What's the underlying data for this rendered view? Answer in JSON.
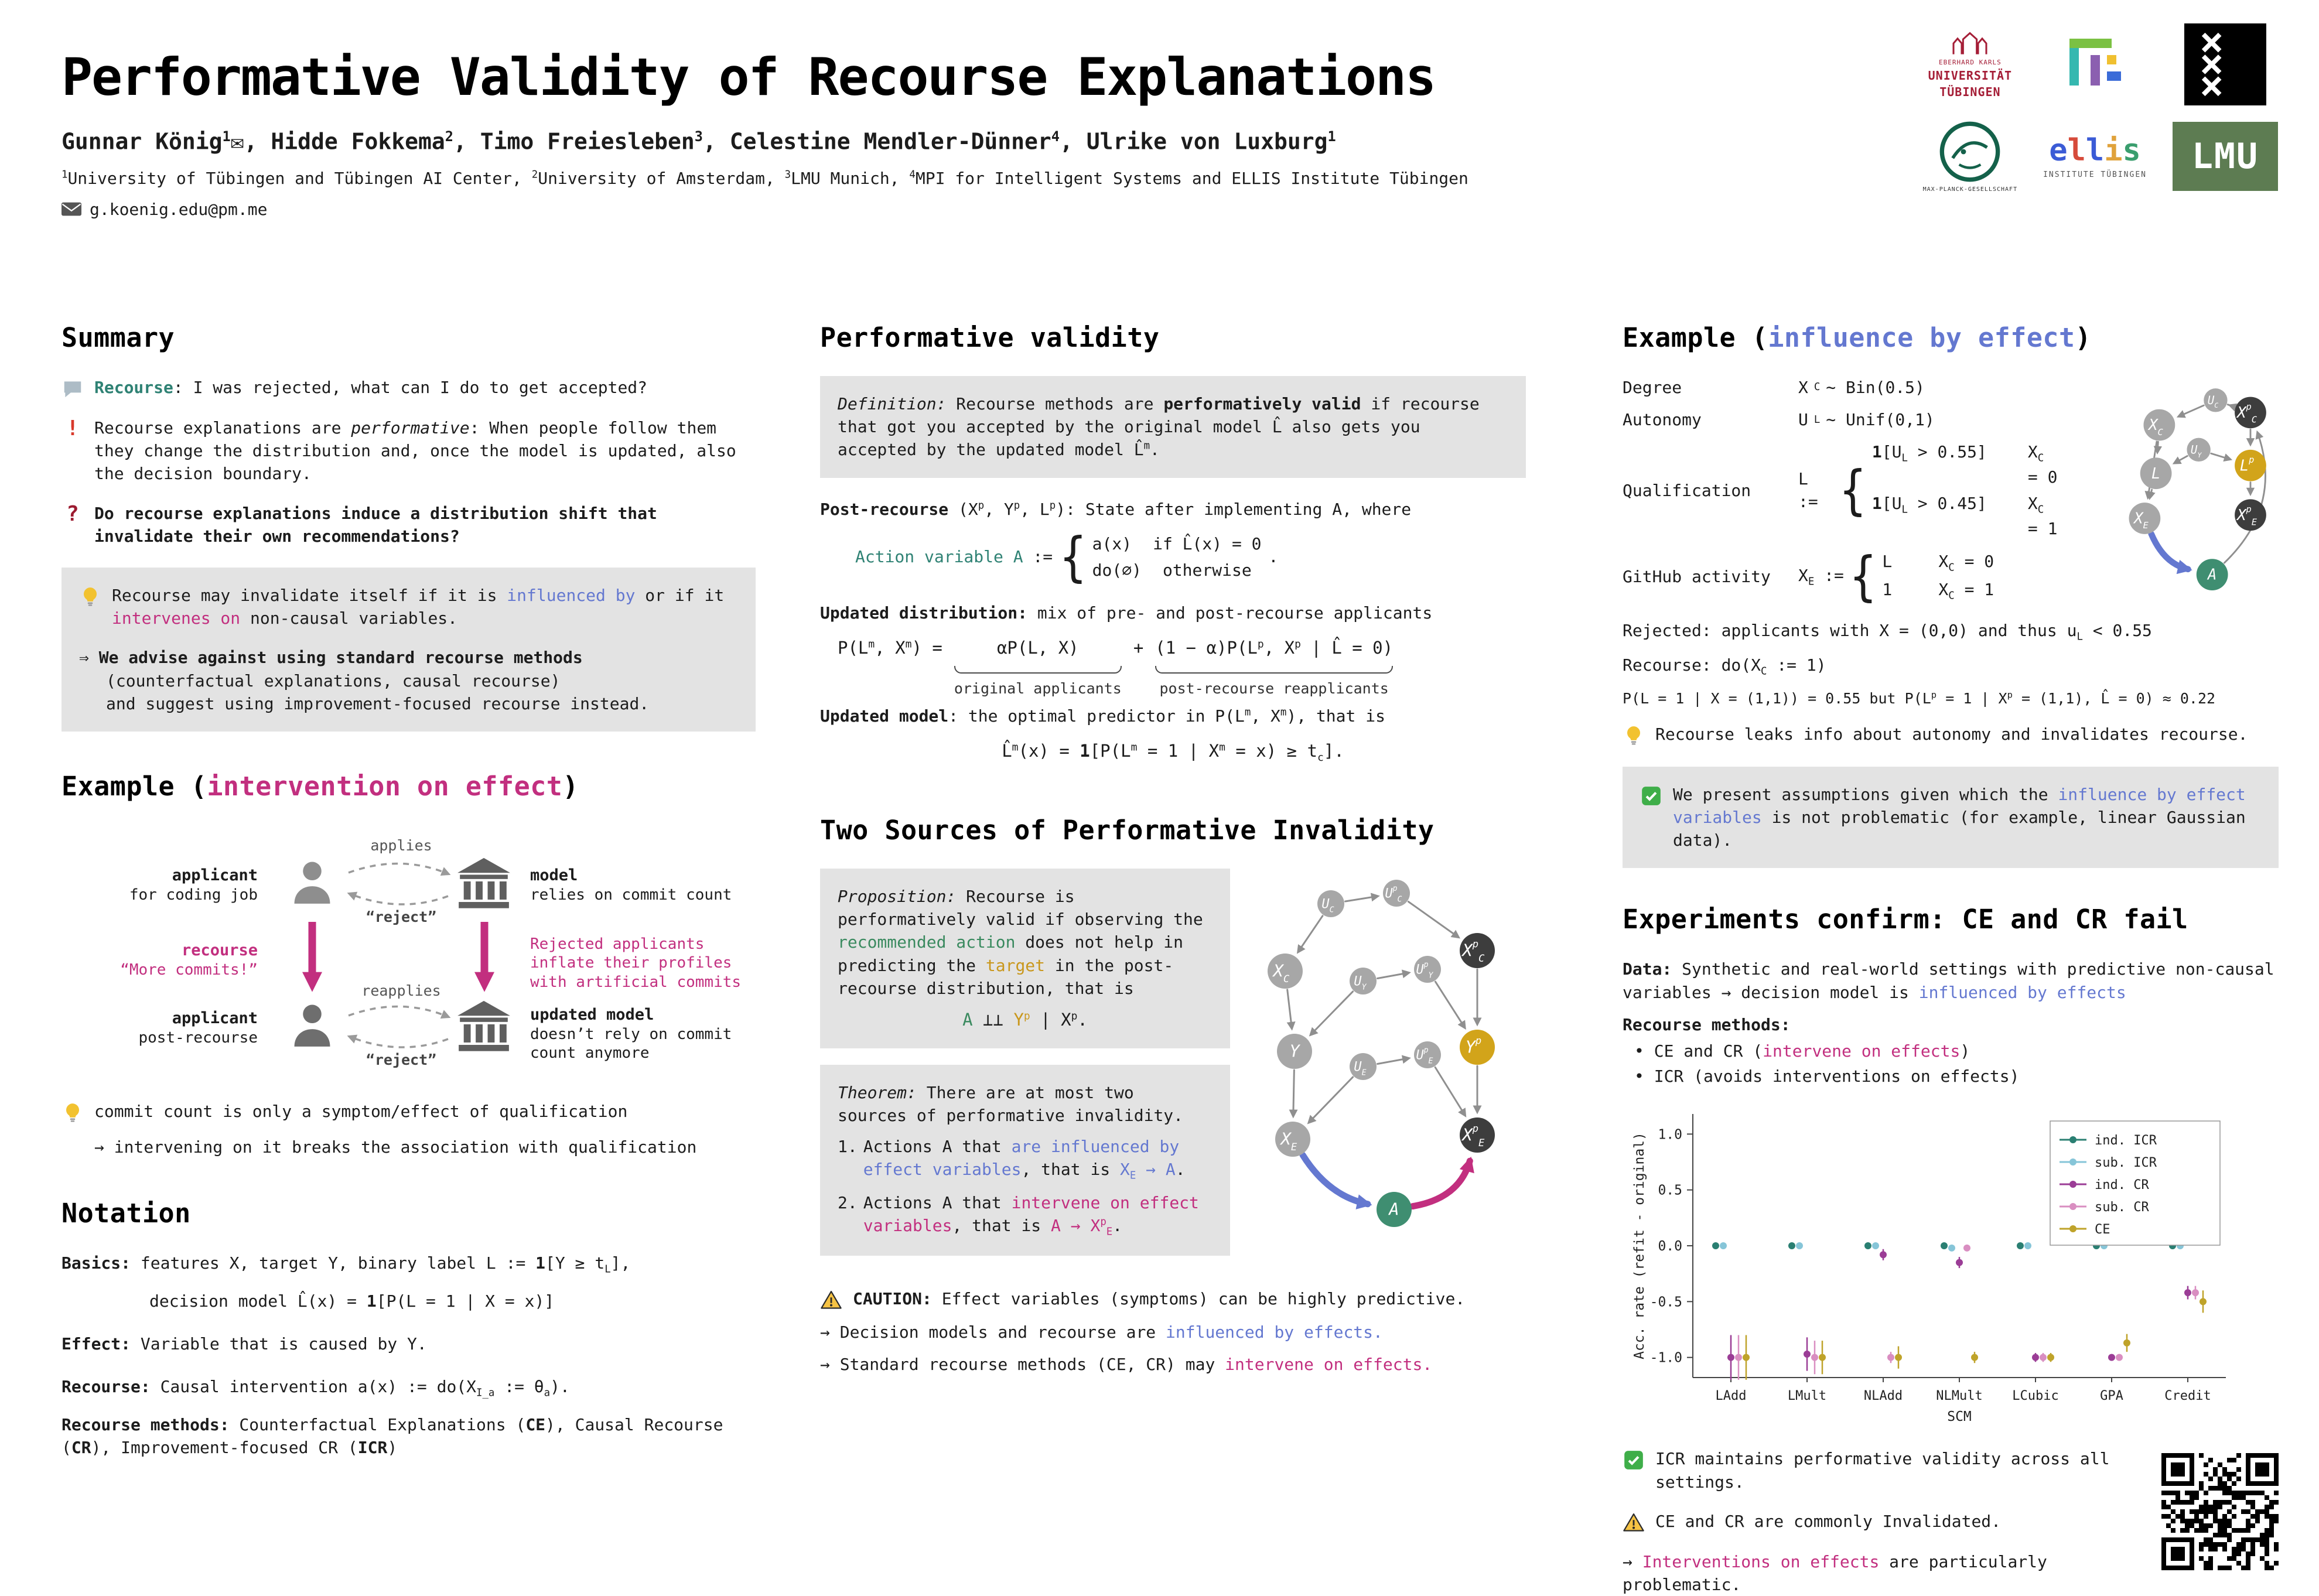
{
  "header": {
    "title": "Performative Validity of Recourse Explanations",
    "authors": "Gunnar König^1^✉, Hidde Fokkema^2^, Timo Freiesleben^3^, Celestine Mendler-Dünner^4^, Ulrike von Luxburg^1^",
    "affiliations": "^1^University of Tübingen and Tübingen AI Center, ^2^University of Amsterdam, ^3^LMU Munich, ^4^MPI for Intelligent Systems and ELLIS Institute Tübingen",
    "email": "g.koenig.edu@pm.me",
    "logos": {
      "uni_tuebingen": [
        "EBERHARD KARLS",
        "UNIVERSITÄT",
        "TÜBINGEN"
      ],
      "mpg": "MAX-PLANCK-GESELLSCHAFT",
      "ellis_letters": [
        {
          "ch": "e",
          "c": "#3b5bd6"
        },
        {
          "ch": "l",
          "c": "#d64b3b"
        },
        {
          "ch": "l",
          "c": "#3b5bd6"
        },
        {
          "ch": "i",
          "c": "#e0a23b"
        },
        {
          "ch": "s",
          "c": "#3a9e6e"
        }
      ],
      "ellis_caption": "INSTITUTE TÜBINGEN",
      "lmu": "LMU"
    }
  },
  "summary": {
    "heading": "Summary",
    "items": [
      {
        "spans": [
          {
            "t": "Recourse",
            "c": "teal bold"
          },
          {
            "t": ": I was rejected, what can I do to get accepted?"
          }
        ]
      },
      {
        "spans": [
          {
            "t": "Recourse explanations are "
          },
          {
            "t": "performative",
            "c": "italic"
          },
          {
            "t": ": When people follow them they change the distribution and, once the model is updated, also the decision boundary."
          }
        ]
      },
      {
        "spans": [
          {
            "t": "Do recourse explanations induce a distribution shift that invalidate their own recommendations?",
            "c": "bold"
          }
        ]
      }
    ],
    "box": {
      "bulb_spans": [
        {
          "t": "Recourse may invalidate itself if it is "
        },
        {
          "t": "influenced by",
          "c": "blue"
        },
        {
          "t": " or if it "
        },
        {
          "t": "intervenes on",
          "c": "magenta"
        },
        {
          "t": " non-causal variables."
        }
      ],
      "advice_spans": [
        {
          "t": "⇒ "
        },
        {
          "t": "We advise against using standard recourse methods",
          "c": "bold"
        },
        {
          "t": "\n(counterfactual explanations, causal recourse)\nand suggest using improvement-focused recourse instead."
        }
      ]
    }
  },
  "example1": {
    "heading_spans": [
      {
        "t": "Example ("
      },
      {
        "t": "intervention on effect",
        "c": "magenta"
      },
      {
        "t": ")"
      }
    ],
    "diagram": {
      "applicant_top_title": "applicant",
      "applicant_top_sub": "for coding job",
      "applies_label": "applies",
      "reject_top": "“reject”",
      "model_title": "model",
      "model_sub": "relies on commit count",
      "recourse_title": "recourse",
      "recourse_quote": "“More commits!”",
      "inflate_text": "Rejected applicants\ninflate their profiles\nwith artificial commits",
      "applicant_bottom_title": "applicant",
      "applicant_bottom_sub": "post-recourse",
      "reapplies_label": "reapplies",
      "reject_bottom": "“reject”",
      "updated_model_title": "updated model",
      "updated_model_sub": "doesn’t rely on commit\ncount anymore"
    },
    "notes": {
      "bulb_spans": [
        {
          "t": "commit count is only a symptom/effect of qualification"
        }
      ],
      "arrow_spans": [
        {
          "t": "→ intervening on it breaks the association with qualification"
        }
      ]
    }
  },
  "notation": {
    "heading": "Notation",
    "basics1_spans": [
      {
        "t": "Basics:",
        "c": "bold"
      },
      {
        "t": " features X, target Y, binary label L := **1**[Y ≥ t~L~],"
      }
    ],
    "basics2_spans": [
      {
        "t": "decision model L̂(x) = **1**[P(L = 1 | X = x)]"
      }
    ],
    "effect_spans": [
      {
        "t": "Effect:",
        "c": "bold"
      },
      {
        "t": " Variable that is caused by Y."
      }
    ],
    "recourse_spans": [
      {
        "t": "Recourse:",
        "c": "bold"
      },
      {
        "t": " Causal intervention a(x) := do(X~I_a~ := θ~a~)."
      }
    ],
    "methods_spans": [
      {
        "t": "Recourse methods:",
        "c": "bold"
      },
      {
        "t": " Counterfactual Explanations (**CE**), Causal Recourse (**CR**), Improvement-focused CR (**ICR**)"
      }
    ]
  },
  "pv": {
    "heading": "Performative validity",
    "definition_spans": [
      {
        "t": "Definition:",
        "c": "italic"
      },
      {
        "t": " Recourse methods are "
      },
      {
        "t": "performatively valid",
        "c": "bold"
      },
      {
        "t": " if recourse that got you accepted by the original model L̂ also gets you accepted by the updated model L̂^m^."
      }
    ],
    "post_spans": [
      {
        "t": "Post-recourse",
        "c": "bold"
      },
      {
        "t": " (X^p^, Y^p^, L^p^): State after implementing A, where"
      }
    ],
    "action": {
      "lhs_spans": [
        {
          "t": "Action variable A",
          "c": "teal"
        },
        {
          "t": " := "
        }
      ],
      "cases": [
        {
          "expr": "a(x)",
          "cond": "if L̂(x) = 0"
        },
        {
          "expr": "do(∅)",
          "cond": "otherwise"
        }
      ],
      "suffix": "."
    },
    "dist_spans": [
      {
        "t": "Updated distribution:",
        "c": "bold"
      },
      {
        "t": " mix of pre- and post-recourse applicants"
      }
    ],
    "eq": {
      "lhs": "P(L^m^, X^m^) =",
      "term1": "αP(L, X)",
      "label1": "original applicants",
      "plus": "+",
      "term2": "(1 − α)P(L^p^, X^p^ | L̂ = 0)",
      "label2": "post-recourse reapplicants"
    },
    "model_spans": [
      {
        "t": "Updated model",
        "c": "bold"
      },
      {
        "t": ": the optimal predictor in P(L^m^, X^m^), that is"
      }
    ],
    "model_eq": "L̂^m^(x) = **1**[P(L^m^ = 1 | X^m^ = x) ≥ t~c~]."
  },
  "ts": {
    "heading": "Two Sources of Performative Invalidity",
    "proposition_spans": [
      {
        "t": "Proposition:",
        "c": "italic"
      },
      {
        "t": " Recourse is performatively valid if observing the "
      },
      {
        "t": "recommended action",
        "c": "green"
      },
      {
        "t": " does not help in predicting the "
      },
      {
        "t": "target",
        "c": "gold"
      },
      {
        "t": " in the post-recourse distribution, that is"
      }
    ],
    "prop_eq_spans": [
      {
        "t": "A",
        "c": "green"
      },
      {
        "t": " ⊥⊥ "
      },
      {
        "t": "Y^p^",
        "c": "gold"
      },
      {
        "t": " | X^p^."
      }
    ],
    "theorem_spans": [
      {
        "t": "Theorem:",
        "c": "italic"
      },
      {
        "t": " There are at most two sources of performative invalidity."
      }
    ],
    "list": [
      {
        "num": "1.",
        "spans": [
          {
            "t": "Actions A that "
          },
          {
            "t": "are influenced by effect variables",
            "c": "blue"
          },
          {
            "t": ", that is "
          },
          {
            "t": "X~E~ → A",
            "c": "blue"
          },
          {
            "t": "."
          }
        ]
      },
      {
        "num": "2.",
        "spans": [
          {
            "t": "Actions A that "
          },
          {
            "t": "intervene on effect variables",
            "c": "magenta"
          },
          {
            "t": ", that is "
          },
          {
            "t": "A → X^p^~E~",
            "c": "magenta"
          },
          {
            "t": "."
          }
        ]
      }
    ],
    "caution_spans": [
      {
        "t": "CAUTION:",
        "c": "bold"
      },
      {
        "t": " Effect variables (symptoms) can be highly predictive."
      }
    ],
    "arrow1_spans": [
      {
        "t": "→ Decision models and recourse are "
      },
      {
        "t": "influenced by effects.",
        "c": "blue"
      }
    ],
    "arrow2_spans": [
      {
        "t": "→ Standard recourse methods (CE, CR) may "
      },
      {
        "t": "intervene on effects.",
        "c": "magenta"
      }
    ]
  },
  "example2": {
    "heading_spans": [
      {
        "t": "Example ("
      },
      {
        "t": "influence by effect",
        "c": "blue"
      },
      {
        "t": ")"
      }
    ],
    "rows": [
      {
        "label": "Degree",
        "formula": "X~C~ ∼ Bin(0.5)"
      },
      {
        "label": "Autonomy",
        "formula": "U~L~ ∼ Unif(0,1)"
      },
      {
        "label": "Qualification",
        "lhs": "L := ",
        "cases": [
          {
            "expr": "**1**[U~L~ > 0.55]",
            "cond": "X~C~ = 0"
          },
          {
            "expr": "**1**[U~L~ > 0.45]",
            "cond": "X~C~ = 1"
          }
        ]
      },
      {
        "label": "GitHub activity",
        "lhs": "X~E~ := ",
        "cases": [
          {
            "expr": "L",
            "cond": "X~C~ = 0"
          },
          {
            "expr": "1",
            "cond": "X~C~ = 1"
          }
        ]
      }
    ],
    "rejected": "Rejected: applicants with X = (0,0) and thus u~L~ < 0.55",
    "recourse": "Recourse: do(X~C~ := 1)",
    "pline": "P(L = 1 | X = (1,1)) = 0.55 but P(L^p^ = 1 | X^p^ = (1,1), L̂ = 0) ≈ 0.22",
    "bulb_spans": [
      {
        "t": "Recourse leaks info about autonomy and invalidates recourse."
      }
    ],
    "box_spans": [
      {
        "t": "We present assumptions given which the "
      },
      {
        "t": "influence by effect variables",
        "c": "blue"
      },
      {
        "t": " is not problematic (for example, linear Gaussian data)."
      }
    ]
  },
  "exp": {
    "heading": "Experiments confirm: CE and CR fail",
    "data_spans": [
      {
        "t": "Data:",
        "c": "bold"
      },
      {
        "t": " Synthetic and real-world settings with predictive non-causal variables → decision model is "
      },
      {
        "t": "influenced by effects",
        "c": "blue"
      }
    ],
    "methods_spans": [
      {
        "t": "Recourse methods:",
        "c": "bold"
      }
    ],
    "bullets": [
      [
        {
          "t": "• CE and CR ("
        },
        {
          "t": "intervene on effects",
          "c": "magenta"
        },
        {
          "t": ")"
        }
      ],
      [
        {
          "t": "• ICR (avoids interventions on effects)"
        }
      ]
    ],
    "conclusions": [
      {
        "spans": [
          {
            "t": "ICR maintains performative validity across all settings."
          }
        ]
      },
      {
        "spans": [
          {
            "t": "CE and CR are commonly Invalidated."
          }
        ]
      },
      {
        "spans": [
          {
            "t": "→ "
          },
          {
            "t": "Interventions on effects",
            "c": "magenta"
          },
          {
            "t": " are particularly problematic."
          }
        ]
      }
    ]
  },
  "chart_data": {
    "type": "scatter",
    "title": "",
    "xlabel": "SCM",
    "ylabel": "Acc. rate (refit - original)",
    "ylim": [
      -1.18,
      1.18
    ],
    "yticks": [
      1.0,
      0.5,
      0.0,
      -0.5,
      -1.0
    ],
    "categories": [
      "LAdd",
      "LMult",
      "NLAdd",
      "NLMult",
      "LCubic",
      "GPA",
      "Credit"
    ],
    "legend_position": "right",
    "series": [
      {
        "name": "ind. ICR",
        "color": "#2a7f72",
        "values": [
          0,
          0,
          0,
          0,
          0,
          0,
          0
        ],
        "err": [
          0.02,
          0.02,
          0.02,
          0.02,
          0.02,
          0.02,
          0.02
        ]
      },
      {
        "name": "sub. ICR",
        "color": "#86c5d8",
        "values": [
          0,
          0,
          0,
          -0.02,
          0,
          0,
          0
        ],
        "err": [
          0.02,
          0.02,
          0.02,
          0.02,
          0.02,
          0.02,
          0.02
        ]
      },
      {
        "name": "ind. CR",
        "color": "#9b3d96",
        "values": [
          -1,
          -0.97,
          -0.08,
          -0.15,
          -1,
          -1,
          -0.42
        ],
        "err": [
          0.2,
          0.15,
          0.05,
          0.05,
          0.04,
          0.03,
          0.06
        ]
      },
      {
        "name": "sub. CR",
        "color": "#d98ec1",
        "values": [
          -1,
          -1,
          -1,
          -0.02,
          -1,
          -1,
          -0.42
        ],
        "err": [
          0.2,
          0.15,
          0.05,
          0.02,
          0.04,
          0.03,
          0.06
        ]
      },
      {
        "name": "CE",
        "color": "#bfa32a",
        "values": [
          -1,
          -1,
          -1,
          -1,
          -1,
          -0.87,
          -0.5
        ],
        "err": [
          0.2,
          0.15,
          0.1,
          0.05,
          0.04,
          0.08,
          0.1
        ]
      }
    ]
  },
  "graphs": {
    "g1": {
      "nodes": [
        {
          "id": "UC",
          "main": "U",
          "sub": "C",
          "color": "gray",
          "small": true
        },
        {
          "id": "UpC",
          "main": "U",
          "sup": "p",
          "sub": "C",
          "color": "gray",
          "small": true
        },
        {
          "id": "XC",
          "main": "X",
          "sub": "C",
          "color": "gray"
        },
        {
          "id": "XpC",
          "main": "X",
          "sup": "p",
          "sub": "C",
          "color": "dark"
        },
        {
          "id": "UY",
          "main": "U",
          "sub": "Y",
          "color": "gray",
          "small": true
        },
        {
          "id": "UpY",
          "main": "U",
          "sup": "p",
          "sub": "Y",
          "color": "gray",
          "small": true
        },
        {
          "id": "Y",
          "main": "Y",
          "color": "gray"
        },
        {
          "id": "Yp",
          "main": "Y",
          "sup": "p",
          "color": "gold"
        },
        {
          "id": "UE",
          "main": "U",
          "sub": "E",
          "color": "gray",
          "small": true
        },
        {
          "id": "UpE",
          "main": "U",
          "sup": "p",
          "sub": "E",
          "color": "gray",
          "small": true
        },
        {
          "id": "XE",
          "main": "X",
          "sub": "E",
          "color": "gray"
        },
        {
          "id": "XpE",
          "main": "X",
          "sup": "p",
          "sub": "E",
          "color": "dark"
        },
        {
          "id": "A",
          "main": "A",
          "color": "green"
        }
      ],
      "edges": [
        {
          "from": "UC",
          "to": "XC"
        },
        {
          "from": "UC",
          "to": "UpC"
        },
        {
          "from": "UpC",
          "to": "XpC"
        },
        {
          "from": "XC",
          "to": "Y"
        },
        {
          "from": "UY",
          "to": "Y"
        },
        {
          "from": "UY",
          "to": "UpY"
        },
        {
          "from": "UpY",
          "to": "Yp"
        },
        {
          "from": "XpC",
          "to": "Yp"
        },
        {
          "from": "Y",
          "to": "XE"
        },
        {
          "from": "UE",
          "to": "XE"
        },
        {
          "from": "UE",
          "to": "UpE"
        },
        {
          "from": "UpE",
          "to": "XpE"
        },
        {
          "from": "Yp",
          "to": "XpE"
        },
        {
          "from": "XE",
          "to": "A",
          "style": "blue"
        },
        {
          "from": "A",
          "to": "XpE",
          "style": "magenta"
        }
      ]
    },
    "g2": {
      "nodes": [
        {
          "id": "UC",
          "main": "U",
          "sub": "C",
          "color": "gray",
          "small": true
        },
        {
          "id": "XC",
          "main": "X",
          "sub": "C",
          "color": "gray"
        },
        {
          "id": "XpC",
          "main": "X",
          "sup": "p",
          "sub": "C",
          "color": "dark"
        },
        {
          "id": "UY",
          "main": "U",
          "sub": "Y",
          "color": "gray",
          "small": true
        },
        {
          "id": "L",
          "main": "L",
          "color": "gray"
        },
        {
          "id": "Lp",
          "main": "L",
          "sup": "p",
          "color": "gold"
        },
        {
          "id": "XE",
          "main": "X",
          "sub": "E",
          "color": "gray"
        },
        {
          "id": "XpE",
          "main": "X",
          "sup": "p",
          "sub": "E",
          "color": "dark"
        },
        {
          "id": "A",
          "main": "A",
          "color": "green"
        }
      ],
      "edges": [
        {
          "from": "UC",
          "to": "XC"
        },
        {
          "from": "UC",
          "to": "XpC"
        },
        {
          "from": "XC",
          "to": "L"
        },
        {
          "from": "UY",
          "to": "L"
        },
        {
          "from": "UY",
          "to": "Lp"
        },
        {
          "from": "XpC",
          "to": "Lp"
        },
        {
          "from": "L",
          "to": "XE"
        },
        {
          "from": "XC",
          "to": "XE"
        },
        {
          "from": "Lp",
          "to": "XpE"
        },
        {
          "from": "XE",
          "to": "A",
          "style": "blue"
        },
        {
          "from": "A",
          "to": "XpC"
        }
      ]
    }
  }
}
